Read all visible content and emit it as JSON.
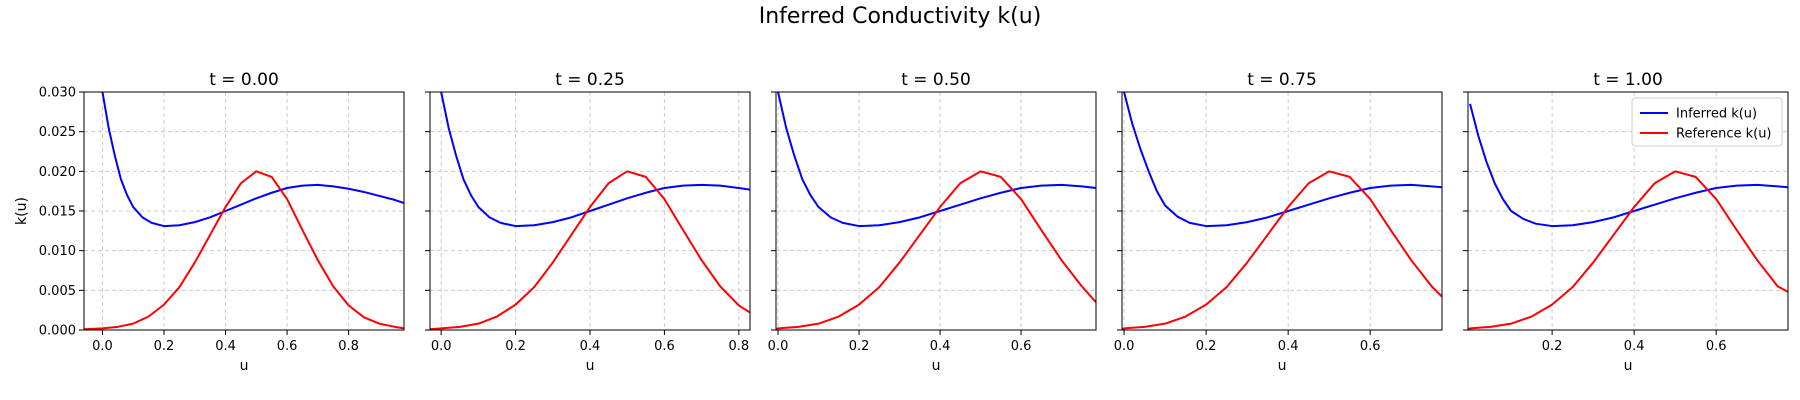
{
  "suptitle": "Inferred Conductivity k(u)",
  "chart_data": {
    "type": "line",
    "title": "Inferred Conductivity k(u)",
    "ylabel": "k(u)",
    "ylim": [
      0,
      0.03
    ],
    "yticks": [
      0.0,
      0.005,
      0.01,
      0.015,
      0.02,
      0.025,
      0.03
    ],
    "ytick_labels": [
      "0.000",
      "0.005",
      "0.010",
      "0.015",
      "0.020",
      "0.025",
      "0.030"
    ],
    "grid": true,
    "legend_position": "top-right",
    "colors": {
      "inferred": "#0000ff",
      "reference": "#ff0000",
      "grid": "#cccccc"
    },
    "panels": [
      {
        "title": "t = 0.00",
        "xlabel": "u",
        "xlim": [
          -0.06,
          0.98
        ],
        "xticks": [
          0.0,
          0.2,
          0.4,
          0.6,
          0.8
        ],
        "xtick_labels": [
          "0.0",
          "0.2",
          "0.4",
          "0.6",
          "0.8"
        ],
        "show_ytick_labels": true,
        "show_legend": false,
        "series": [
          {
            "name": "Inferred k(u)",
            "color": "#0000ff",
            "x": [
              0.0,
              0.02,
              0.04,
              0.06,
              0.08,
              0.1,
              0.13,
              0.16,
              0.2,
              0.25,
              0.3,
              0.35,
              0.4,
              0.45,
              0.5,
              0.55,
              0.6,
              0.65,
              0.7,
              0.75,
              0.8,
              0.85,
              0.9,
              0.95,
              0.98
            ],
            "y": [
              0.03,
              0.0255,
              0.022,
              0.019,
              0.017,
              0.0155,
              0.0142,
              0.0135,
              0.0131,
              0.0132,
              0.0136,
              0.0142,
              0.015,
              0.0158,
              0.0166,
              0.0173,
              0.0179,
              0.0182,
              0.0183,
              0.0181,
              0.0178,
              0.0174,
              0.0169,
              0.0164,
              0.016
            ]
          },
          {
            "name": "Reference k(u)",
            "color": "#ff0000",
            "x": [
              -0.06,
              0.0,
              0.05,
              0.1,
              0.15,
              0.2,
              0.25,
              0.3,
              0.35,
              0.4,
              0.45,
              0.5,
              0.55,
              0.6,
              0.65,
              0.7,
              0.75,
              0.8,
              0.85,
              0.9,
              0.95,
              0.98
            ],
            "y": [
              0.0001,
              0.0002,
              0.0004,
              0.0008,
              0.0017,
              0.0032,
              0.0054,
              0.0085,
              0.012,
              0.0155,
              0.0185,
              0.02,
              0.0193,
              0.0165,
              0.0126,
              0.0088,
              0.0055,
              0.0031,
              0.0016,
              0.0008,
              0.0004,
              0.0002
            ]
          }
        ]
      },
      {
        "title": "t = 0.25",
        "xlabel": "u",
        "xlim": [
          -0.03,
          0.83
        ],
        "xticks": [
          0.0,
          0.2,
          0.4,
          0.6,
          0.8
        ],
        "xtick_labels": [
          "0.0",
          "0.2",
          "0.4",
          "0.6",
          "0.8"
        ],
        "show_ytick_labels": false,
        "show_legend": false,
        "series": [
          {
            "name": "Inferred k(u)",
            "color": "#0000ff",
            "x": [
              0.0,
              0.02,
              0.04,
              0.06,
              0.08,
              0.1,
              0.13,
              0.16,
              0.2,
              0.25,
              0.3,
              0.35,
              0.4,
              0.45,
              0.5,
              0.55,
              0.6,
              0.65,
              0.7,
              0.75,
              0.8,
              0.83
            ],
            "y": [
              0.03,
              0.0255,
              0.022,
              0.019,
              0.017,
              0.0155,
              0.0142,
              0.0135,
              0.0131,
              0.0132,
              0.0136,
              0.0142,
              0.015,
              0.0158,
              0.0166,
              0.0173,
              0.0179,
              0.0182,
              0.0183,
              0.0182,
              0.0179,
              0.0177
            ]
          },
          {
            "name": "Reference k(u)",
            "color": "#ff0000",
            "x": [
              -0.03,
              0.0,
              0.05,
              0.1,
              0.15,
              0.2,
              0.25,
              0.3,
              0.35,
              0.4,
              0.45,
              0.5,
              0.55,
              0.6,
              0.65,
              0.7,
              0.75,
              0.8,
              0.83
            ],
            "y": [
              0.0001,
              0.0002,
              0.0004,
              0.0008,
              0.0017,
              0.0032,
              0.0054,
              0.0085,
              0.012,
              0.0155,
              0.0185,
              0.02,
              0.0193,
              0.0165,
              0.0126,
              0.0088,
              0.0055,
              0.0031,
              0.0022
            ]
          }
        ]
      },
      {
        "title": "t = 0.50",
        "xlabel": "u",
        "xlim": [
          -0.005,
          0.785
        ],
        "xticks": [
          0.0,
          0.2,
          0.4,
          0.6
        ],
        "xtick_labels": [
          "0.0",
          "0.2",
          "0.4",
          "0.6"
        ],
        "show_ytick_labels": false,
        "show_legend": false,
        "series": [
          {
            "name": "Inferred k(u)",
            "color": "#0000ff",
            "x": [
              0.0,
              0.02,
              0.04,
              0.06,
              0.08,
              0.1,
              0.13,
              0.16,
              0.2,
              0.25,
              0.3,
              0.35,
              0.4,
              0.45,
              0.5,
              0.55,
              0.6,
              0.65,
              0.7,
              0.75,
              0.785
            ],
            "y": [
              0.03,
              0.0255,
              0.022,
              0.019,
              0.017,
              0.0155,
              0.0142,
              0.0135,
              0.0131,
              0.0132,
              0.0136,
              0.0142,
              0.015,
              0.0158,
              0.0166,
              0.0173,
              0.0179,
              0.0182,
              0.0183,
              0.0181,
              0.0179
            ]
          },
          {
            "name": "Reference k(u)",
            "color": "#ff0000",
            "x": [
              -0.005,
              0.0,
              0.05,
              0.1,
              0.15,
              0.2,
              0.25,
              0.3,
              0.35,
              0.4,
              0.45,
              0.5,
              0.55,
              0.6,
              0.65,
              0.7,
              0.75,
              0.785
            ],
            "y": [
              0.0001,
              0.0002,
              0.0004,
              0.0008,
              0.0017,
              0.0032,
              0.0054,
              0.0085,
              0.012,
              0.0155,
              0.0185,
              0.02,
              0.0193,
              0.0165,
              0.0126,
              0.0088,
              0.0055,
              0.0035
            ]
          }
        ]
      },
      {
        "title": "t = 0.75",
        "xlabel": "u",
        "xlim": [
          -0.005,
          0.775
        ],
        "xticks": [
          0.0,
          0.2,
          0.4,
          0.6
        ],
        "xtick_labels": [
          "0.0",
          "0.2",
          "0.4",
          "0.6"
        ],
        "show_ytick_labels": false,
        "show_legend": false,
        "series": [
          {
            "name": "Inferred k(u)",
            "color": "#0000ff",
            "x": [
              0.0,
              0.02,
              0.04,
              0.06,
              0.08,
              0.1,
              0.13,
              0.16,
              0.2,
              0.25,
              0.3,
              0.35,
              0.4,
              0.45,
              0.5,
              0.55,
              0.6,
              0.65,
              0.7,
              0.75,
              0.775
            ],
            "y": [
              0.03,
              0.026,
              0.0228,
              0.02,
              0.0175,
              0.0157,
              0.0143,
              0.0135,
              0.0131,
              0.0132,
              0.0136,
              0.0142,
              0.015,
              0.0158,
              0.0166,
              0.0173,
              0.0179,
              0.0182,
              0.0183,
              0.0181,
              0.018
            ]
          },
          {
            "name": "Reference k(u)",
            "color": "#ff0000",
            "x": [
              -0.005,
              0.0,
              0.05,
              0.1,
              0.15,
              0.2,
              0.25,
              0.3,
              0.35,
              0.4,
              0.45,
              0.5,
              0.55,
              0.6,
              0.65,
              0.7,
              0.75,
              0.775
            ],
            "y": [
              0.0001,
              0.0002,
              0.0004,
              0.0008,
              0.0017,
              0.0032,
              0.0054,
              0.0085,
              0.012,
              0.0155,
              0.0185,
              0.02,
              0.0193,
              0.0165,
              0.0126,
              0.0088,
              0.0055,
              0.0042
            ]
          }
        ]
      },
      {
        "title": "t = 1.00",
        "xlabel": "u",
        "xlim": [
          -0.005,
          0.775
        ],
        "xticks": [
          0.2,
          0.4,
          0.6
        ],
        "xtick_labels": [
          "0.2",
          "0.4",
          "0.6"
        ],
        "show_ytick_labels": false,
        "show_legend": true,
        "series": [
          {
            "name": "Inferred k(u)",
            "color": "#0000ff",
            "x": [
              0.0,
              0.02,
              0.04,
              0.06,
              0.08,
              0.1,
              0.13,
              0.16,
              0.2,
              0.25,
              0.3,
              0.35,
              0.4,
              0.45,
              0.5,
              0.55,
              0.6,
              0.65,
              0.7,
              0.75,
              0.775
            ],
            "y": [
              0.0285,
              0.0245,
              0.0212,
              0.0185,
              0.0165,
              0.015,
              0.014,
              0.0134,
              0.0131,
              0.0132,
              0.0136,
              0.0142,
              0.015,
              0.0158,
              0.0166,
              0.0173,
              0.0179,
              0.0182,
              0.0183,
              0.0181,
              0.018
            ]
          },
          {
            "name": "Reference k(u)",
            "color": "#ff0000",
            "x": [
              -0.005,
              0.0,
              0.05,
              0.1,
              0.15,
              0.2,
              0.25,
              0.3,
              0.35,
              0.4,
              0.45,
              0.5,
              0.55,
              0.6,
              0.65,
              0.7,
              0.75,
              0.775
            ],
            "y": [
              0.0001,
              0.0002,
              0.0004,
              0.0008,
              0.0017,
              0.0032,
              0.0054,
              0.0085,
              0.012,
              0.0155,
              0.0185,
              0.02,
              0.0193,
              0.0165,
              0.0126,
              0.0088,
              0.0055,
              0.0048
            ]
          }
        ]
      }
    ]
  }
}
